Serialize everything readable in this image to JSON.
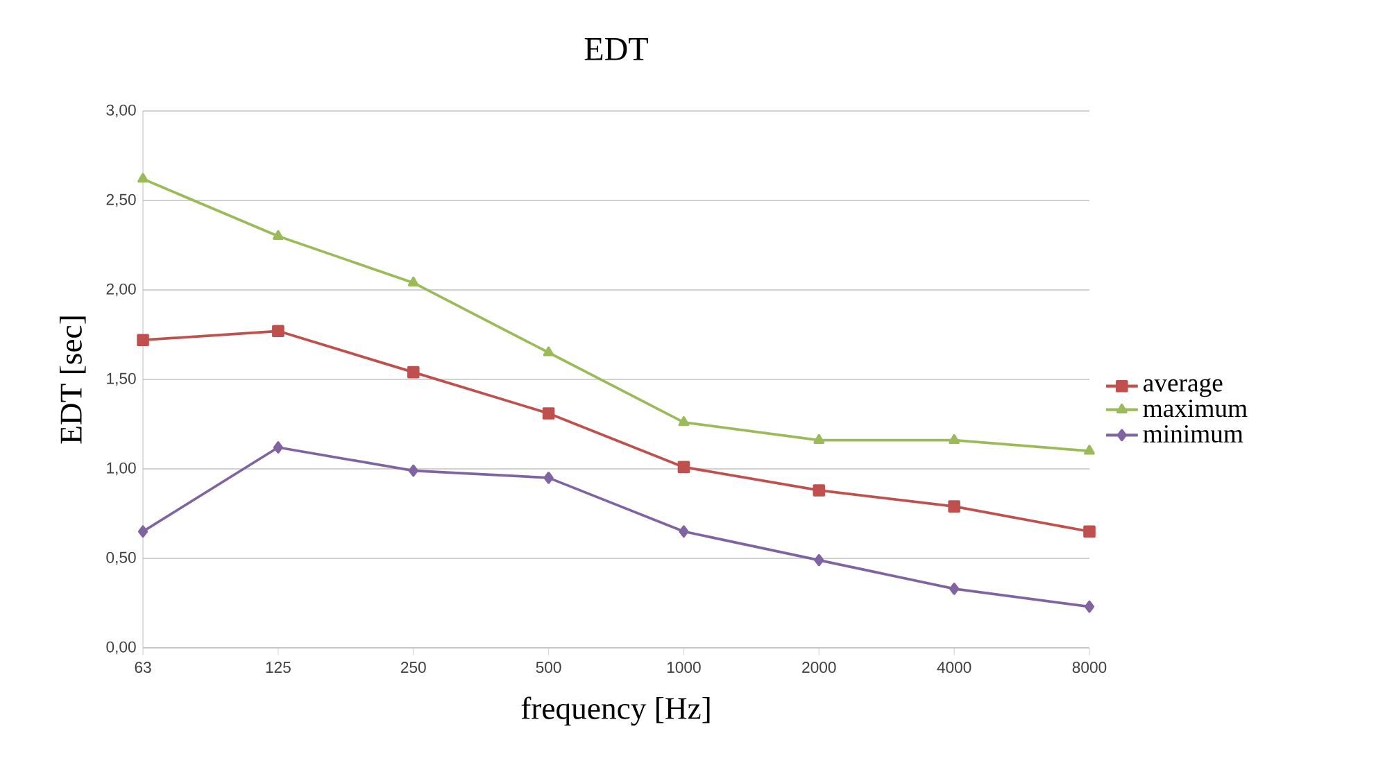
{
  "chart_data": {
    "type": "line",
    "title": "EDT",
    "xlabel": "frequency [Hz]",
    "ylabel": "EDT [sec]",
    "categories": [
      "63",
      "125",
      "250",
      "500",
      "1000",
      "2000",
      "4000",
      "8000"
    ],
    "series": [
      {
        "name": "average",
        "color": "#c0504d",
        "marker": "square",
        "values": [
          1.72,
          1.77,
          1.54,
          1.31,
          1.01,
          0.88,
          0.79,
          0.65
        ]
      },
      {
        "name": "maximum",
        "color": "#9bbb59",
        "marker": "triangle",
        "values": [
          2.62,
          2.3,
          2.04,
          1.65,
          1.26,
          1.16,
          1.16,
          1.1
        ]
      },
      {
        "name": "minimum",
        "color": "#8064a2",
        "marker": "diamond",
        "values": [
          0.65,
          1.12,
          0.99,
          0.95,
          0.65,
          0.49,
          0.33,
          0.23
        ]
      }
    ],
    "ylim": [
      0,
      3
    ],
    "yticks": [
      {
        "value": 0,
        "label": "0,00"
      },
      {
        "value": 0.5,
        "label": "0,50"
      },
      {
        "value": 1,
        "label": "1,00"
      },
      {
        "value": 1.5,
        "label": "1,50"
      },
      {
        "value": 2,
        "label": "2,00"
      },
      {
        "value": 2.5,
        "label": "2,50"
      },
      {
        "value": 3,
        "label": "3,00"
      }
    ],
    "grid": "y",
    "legend": "right",
    "line_style": "solid"
  }
}
